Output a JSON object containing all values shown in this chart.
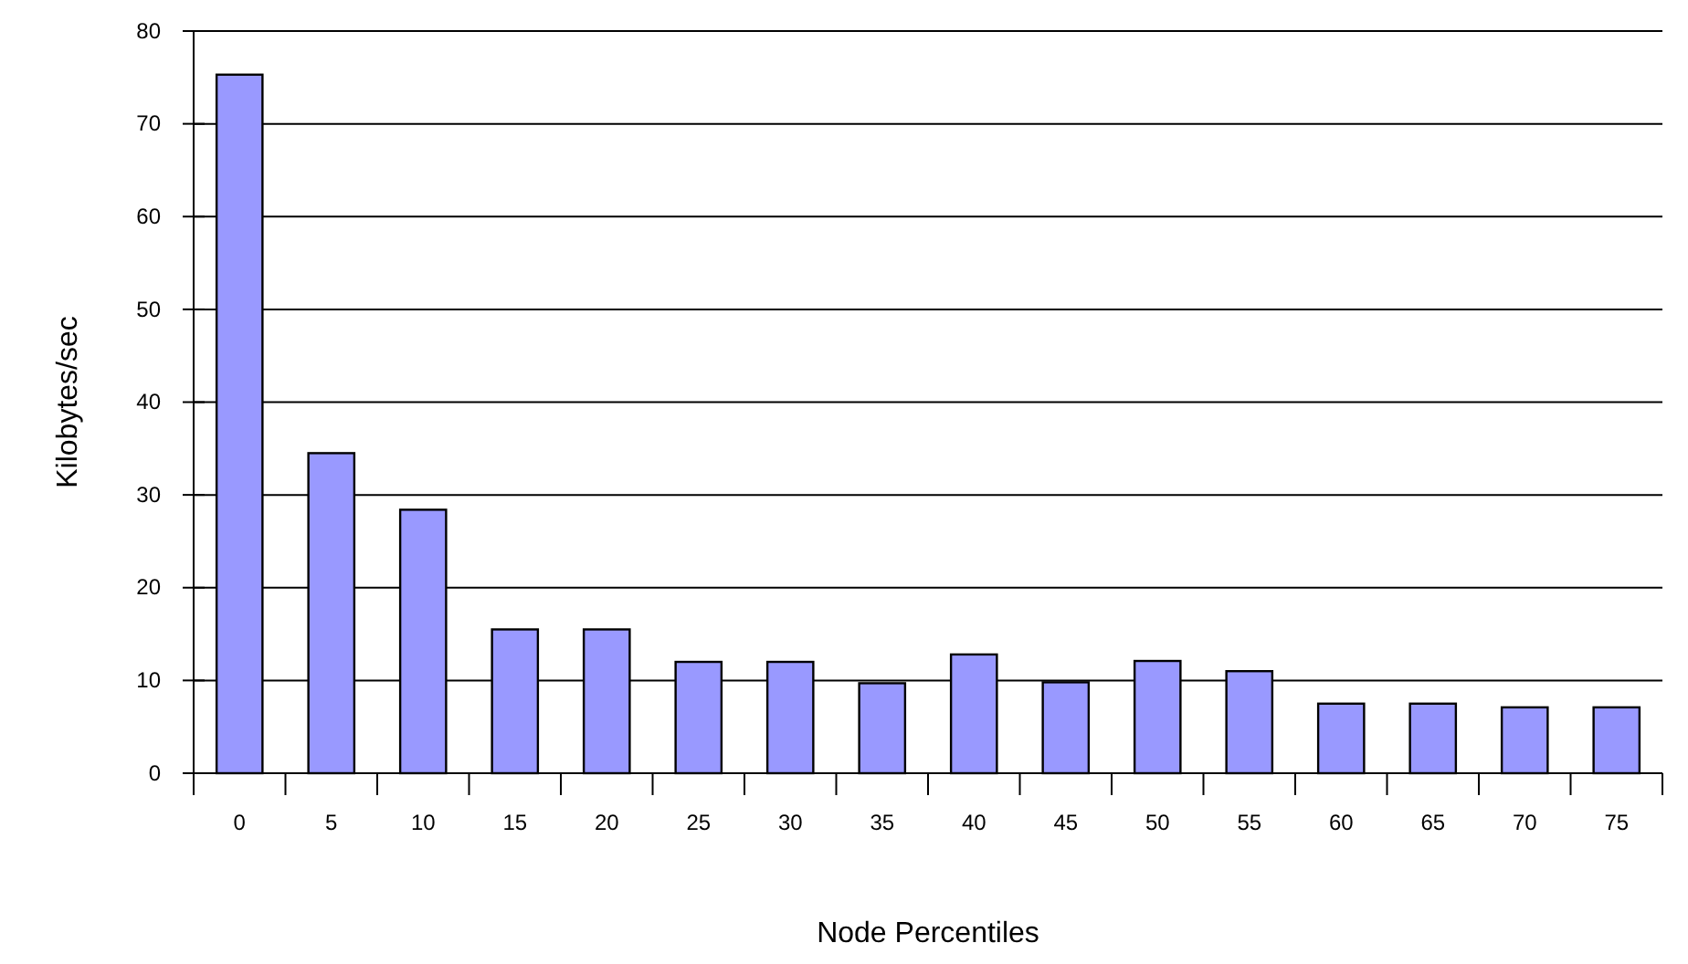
{
  "chart_data": {
    "type": "bar",
    "xlabel": "Node Percentiles",
    "ylabel": "Kilobytes/sec",
    "categories": [
      "0",
      "5",
      "10",
      "15",
      "20",
      "25",
      "30",
      "35",
      "40",
      "45",
      "50",
      "55",
      "60",
      "65",
      "70",
      "75"
    ],
    "values": [
      75.3,
      34.5,
      28.4,
      15.5,
      15.5,
      12,
      12,
      9.7,
      12.8,
      9.8,
      12.1,
      11,
      7.5,
      7.5,
      7.1,
      7.1
    ],
    "color": "#9999ff",
    "ylim": [
      0,
      80
    ],
    "yticks": [
      0,
      10,
      20,
      30,
      40,
      50,
      60,
      70,
      80
    ],
    "grid": "y"
  }
}
